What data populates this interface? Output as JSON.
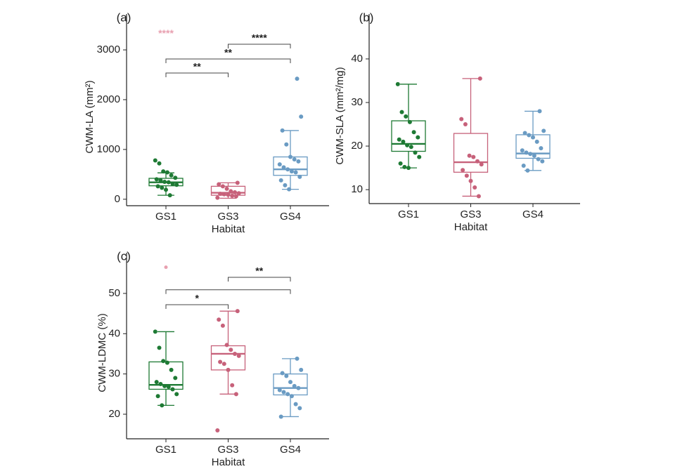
{
  "chart_data": [
    {
      "type": "box",
      "panel_label": "(a)",
      "xlabel": "Habitat",
      "ylabel": "CWM-LA (mm²)",
      "categories": [
        "GS1",
        "GS3",
        "GS4"
      ],
      "ylim": [
        -130,
        3720
      ],
      "yticks": [
        0,
        1000,
        2000,
        3000
      ],
      "boxes": [
        {
          "color": "#1e7a34",
          "min": 80,
          "q1": 270,
          "median": 340,
          "q3": 420,
          "max": 530,
          "points": [
            780,
            720,
            560,
            540,
            480,
            430,
            400,
            380,
            350,
            340,
            310,
            290,
            260,
            230,
            190,
            80
          ]
        },
        {
          "color": "#c7617a",
          "min": 20,
          "q1": 80,
          "median": 130,
          "q3": 260,
          "max": 330,
          "points": [
            330,
            300,
            260,
            210,
            160,
            140,
            120,
            110,
            100,
            90,
            70,
            60,
            30
          ]
        },
        {
          "color": "#6a9bc3",
          "min": 200,
          "q1": 480,
          "median": 600,
          "q3": 850,
          "max": 1380,
          "points": [
            2420,
            1660,
            1380,
            1100,
            850,
            800,
            760,
            700,
            640,
            600,
            560,
            540,
            450,
            380,
            280,
            200
          ]
        }
      ],
      "brackets": [
        {
          "from": "GS1",
          "to": "GS3",
          "y": 2535,
          "label": "**"
        },
        {
          "from": "GS1",
          "to": "GS4",
          "y": 2817,
          "label": "**"
        },
        {
          "from": "GS3",
          "to": "GS4",
          "y": 3113,
          "label": "****"
        }
      ],
      "annotations": [
        {
          "category": "GS1",
          "y": 3324,
          "text": "****",
          "color": "#e8a0b0"
        }
      ]
    },
    {
      "type": "box",
      "panel_label": "(b)",
      "xlabel": "Habitat",
      "ylabel": "CWM-SLA (mm²/mg)",
      "categories": [
        "GS1",
        "GS3",
        "GS4"
      ],
      "ylim": [
        6.8,
        50.3
      ],
      "yticks": [
        10,
        20,
        30,
        40
      ],
      "boxes": [
        {
          "color": "#1e7a34",
          "min": 15,
          "q1": 18.8,
          "median": 20.5,
          "q3": 25.8,
          "max": 34.2,
          "points": [
            34.2,
            27.8,
            26.8,
            25.5,
            23.2,
            22,
            21.5,
            21,
            20.2,
            19.8,
            18.5,
            17.5,
            16,
            15.2,
            15
          ]
        },
        {
          "color": "#c7617a",
          "min": 8.5,
          "q1": 14,
          "median": 16.3,
          "q3": 22.9,
          "max": 35.5,
          "points": [
            35.5,
            26.2,
            25,
            17.8,
            17.5,
            16.5,
            15.8,
            14.5,
            13.2,
            12,
            10.5,
            8.5
          ]
        },
        {
          "color": "#6a9bc3",
          "min": 14.4,
          "q1": 17.2,
          "median": 18.3,
          "q3": 22.6,
          "max": 28,
          "points": [
            28,
            23.5,
            23,
            22.5,
            22,
            21,
            19.5,
            19,
            18.5,
            18.2,
            17.8,
            17,
            16.5,
            15.5,
            14.4
          ]
        }
      ],
      "brackets": [],
      "annotations": []
    },
    {
      "type": "box",
      "panel_label": "(c)",
      "xlabel": "Habitat",
      "ylabel": "CWM-LDMC (%)",
      "categories": [
        "GS1",
        "GS3",
        "GS4"
      ],
      "ylim": [
        13.9,
        60.1
      ],
      "yticks": [
        20,
        30,
        40,
        50
      ],
      "boxes": [
        {
          "color": "#1e7a34",
          "min": 22.2,
          "q1": 26.2,
          "median": 27.3,
          "q3": 33,
          "max": 40.5,
          "points": [
            40.5,
            36.5,
            33.2,
            32.8,
            31,
            29,
            28,
            27.5,
            27,
            26.8,
            26.2,
            25,
            24.5,
            22.2
          ]
        },
        {
          "color": "#c7617a",
          "min": 25,
          "q1": 31,
          "median": 35,
          "q3": 37,
          "max": 45.6,
          "points": [
            45.6,
            43.5,
            42,
            37.2,
            36,
            35,
            34.5,
            33,
            32.5,
            31,
            27.2,
            25,
            16
          ]
        },
        {
          "color": "#6a9bc3",
          "min": 19.4,
          "q1": 24.8,
          "median": 26.5,
          "q3": 30,
          "max": 33.8,
          "points": [
            33.8,
            31,
            30.2,
            29.5,
            28,
            27,
            26.5,
            26,
            25.5,
            25,
            24.5,
            22.5,
            21.5,
            19.4
          ]
        }
      ],
      "brackets": [
        {
          "from": "GS1",
          "to": "GS3",
          "y": 47.2,
          "label": "*"
        },
        {
          "from": "GS1",
          "to": "GS4",
          "y": 50.9
        },
        {
          "from": "GS3",
          "to": "GS4",
          "y": 54.0,
          "label": "**"
        }
      ],
      "annotations": [
        {
          "category": "GS1",
          "y": 56.5,
          "color": "#e8a0b0"
        }
      ]
    }
  ]
}
